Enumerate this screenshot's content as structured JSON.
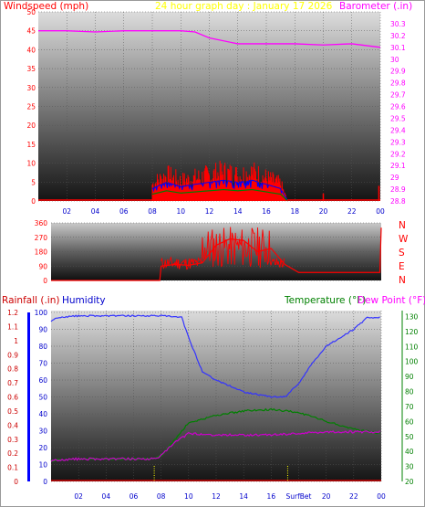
{
  "header": {
    "left_title": "Windspeed (mph)",
    "center_title": "24 hour graph day : January 17 2026",
    "right_title": "Barometer (.in)"
  },
  "colors": {
    "wind": "#ff0000",
    "gust": "#0000ff",
    "wind_green": "#008000",
    "barometer": "#ff00ff",
    "center_title": "#ffff00",
    "rainfall": "#cc0000",
    "humidity": "#0000cc",
    "temperature": "#008000",
    "dewpoint": "#ff00ff"
  },
  "chart_data": [
    {
      "type": "line",
      "id": "wind-barometer",
      "x_ticks": [
        "02",
        "04",
        "06",
        "08",
        "10",
        "12",
        "14",
        "16",
        "18",
        "20",
        "22",
        "00"
      ],
      "y_left": {
        "label": "Windspeed (mph)",
        "ylim": [
          0,
          50
        ],
        "ticks": [
          "0",
          "5",
          "10",
          "15",
          "20",
          "25",
          "30",
          "35",
          "40",
          "45",
          "50"
        ]
      },
      "y_right": {
        "label": "Barometer (.in)",
        "ylim": [
          28.8,
          30.4
        ],
        "ticks": [
          "28.8",
          "28.9",
          "29",
          "29.1",
          "29.2",
          "29.3",
          "29.4",
          "29.5",
          "29.6",
          "29.7",
          "29.8",
          "29.9",
          "30",
          "30.1",
          "30.2",
          "30.3"
        ]
      },
      "series": [
        {
          "name": "Barometer",
          "axis": "right",
          "x": [
            0,
            2,
            4,
            6,
            8,
            10,
            11,
            12,
            14,
            16,
            18,
            20,
            22,
            24
          ],
          "y": [
            30.24,
            30.24,
            30.23,
            30.24,
            30.24,
            30.24,
            30.23,
            30.18,
            30.13,
            30.13,
            30.13,
            30.12,
            30.13,
            30.1
          ]
        },
        {
          "name": "Windspeed",
          "axis": "left",
          "summary": "gusty period 08:00-17:30",
          "x": [
            8,
            9,
            10,
            11,
            12,
            13,
            14,
            15,
            16,
            17,
            17.5
          ],
          "y": [
            6,
            9,
            7,
            8,
            9,
            10,
            9,
            10,
            8,
            6,
            0
          ]
        }
      ]
    },
    {
      "type": "line",
      "id": "wind-direction",
      "y_left": {
        "ylim": [
          0,
          360
        ],
        "ticks": [
          "0",
          "90",
          "180",
          "270",
          "360"
        ]
      },
      "y_right_labels": [
        "N",
        "W",
        "S",
        "E",
        "N"
      ],
      "series": [
        {
          "name": "Direction",
          "x": [
            0,
            7.9,
            8,
            9,
            10,
            11,
            12,
            13,
            14,
            15,
            16,
            17,
            18,
            20,
            22,
            23.9,
            24
          ],
          "y": [
            0,
            0,
            90,
            100,
            95,
            110,
            220,
            260,
            250,
            180,
            200,
            100,
            50,
            50,
            50,
            50,
            330
          ]
        }
      ]
    },
    {
      "type": "line",
      "id": "rain-humidity-temp",
      "x_ticks": [
        "02",
        "04",
        "06",
        "08",
        "10",
        "12",
        "14",
        "16",
        "SurfBet",
        "20",
        "22",
        "00"
      ],
      "y_left_outer": {
        "label": "Rainfall (.in)",
        "ylim": [
          0,
          1.2
        ],
        "ticks": [
          "0",
          "0.1",
          "0.2",
          "0.3",
          "0.4",
          "0.5",
          "0.6",
          "0.7",
          "0.8",
          "0.9",
          "1",
          "1.1",
          "1.2"
        ]
      },
      "y_left_inner": {
        "label": "Humidity",
        "ylim": [
          0,
          100
        ],
        "ticks": [
          "0",
          "10",
          "20",
          "30",
          "40",
          "50",
          "60",
          "70",
          "80",
          "90",
          "100"
        ]
      },
      "y_right": {
        "label": "Temperature (°F)",
        "ylim": [
          20,
          140
        ],
        "ticks": [
          "20",
          "30",
          "40",
          "50",
          "60",
          "70",
          "80",
          "90",
          "100",
          "110",
          "120",
          "130"
        ]
      },
      "series": [
        {
          "name": "Humidity",
          "axis": "inner",
          "x": [
            0,
            0.5,
            2,
            4,
            6,
            8,
            9.5,
            10,
            11,
            12,
            14,
            16,
            17,
            18,
            19,
            20,
            21,
            22,
            23,
            24
          ],
          "y": [
            95,
            97,
            98,
            98,
            98,
            98,
            97,
            85,
            65,
            60,
            53,
            50,
            50,
            58,
            70,
            80,
            85,
            90,
            97,
            97
          ]
        },
        {
          "name": "Temperature",
          "axis": "right",
          "x": [
            0,
            2,
            4,
            6,
            7.5,
            8,
            9,
            10,
            12,
            14,
            16,
            18,
            20,
            22,
            24
          ],
          "y": [
            34,
            35,
            35,
            35,
            35,
            37,
            48,
            59,
            64,
            67,
            68,
            66,
            60,
            55,
            52
          ]
        },
        {
          "name": "Dew Point",
          "axis": "right",
          "x": [
            0,
            2,
            4,
            6,
            7.5,
            8,
            9,
            10,
            12,
            14,
            16,
            18,
            20,
            22,
            24
          ],
          "y": [
            34,
            35,
            35,
            35,
            35,
            37,
            46,
            52,
            51,
            51,
            51,
            52,
            53,
            53,
            53
          ]
        },
        {
          "name": "Rainfall",
          "axis": "outer",
          "x": [
            0,
            24
          ],
          "y": [
            0,
            0
          ]
        }
      ]
    }
  ],
  "panel3_labels": {
    "rainfall": "Rainfall (.in)",
    "humidity": "Humidity",
    "temperature": "Temperature (°F)",
    "dewpoint": "Dew Point (°F)"
  }
}
